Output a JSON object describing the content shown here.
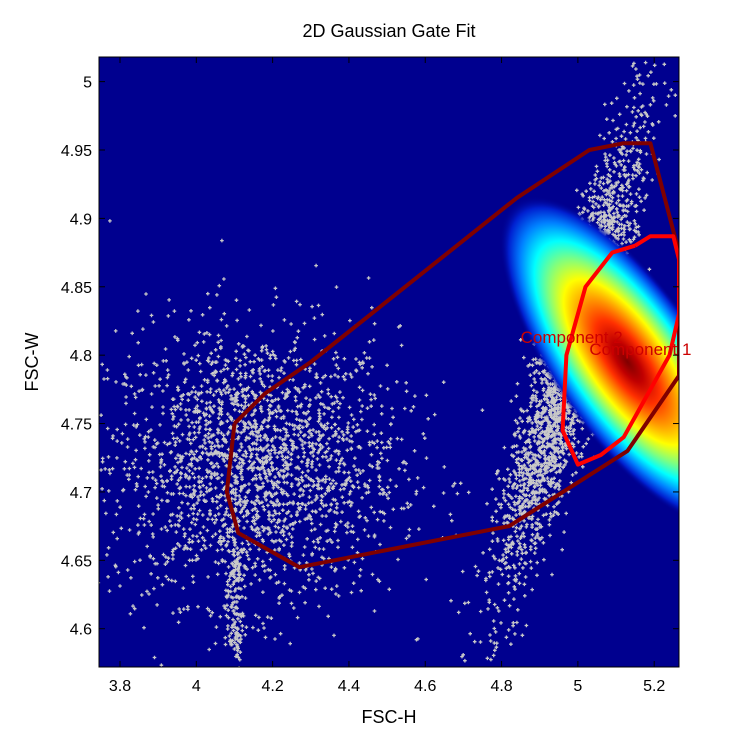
{
  "chart_data": {
    "type": "scatter",
    "title": "2D Gaussian Gate Fit",
    "xlabel": "FSC-H",
    "ylabel": "FSC-W",
    "xlim": [
      3.745,
      5.265
    ],
    "ylim": [
      4.572,
      5.018
    ],
    "xticks": [
      3.8,
      4.0,
      4.2,
      4.4,
      4.6,
      4.8,
      5.0,
      5.2
    ],
    "xtick_labels": [
      "3.8",
      "4",
      "4.2",
      "4.4",
      "4.6",
      "4.8",
      "5",
      "5.2"
    ],
    "yticks": [
      4.6,
      4.65,
      4.7,
      4.75,
      4.8,
      4.85,
      4.9,
      4.95,
      5.0
    ],
    "ytick_labels": [
      "4.6",
      "4.65",
      "4.7",
      "4.75",
      "4.8",
      "4.85",
      "4.9",
      "4.95",
      "5"
    ],
    "background_color": "#00008f",
    "point_color": "#c8c8c8",
    "clusters": [
      {
        "cx": 4.15,
        "cy": 4.72,
        "sx": 0.19,
        "sy": 0.05
      },
      {
        "cx": 4.98,
        "cy": 4.8,
        "sx": 0.11,
        "sy": 0.08
      }
    ],
    "density": {
      "cx": 5.13,
      "cy": 4.795,
      "sx": 0.075,
      "sy": 0.055,
      "rho": 0.55
    },
    "gates": [
      {
        "name": "outer-gate",
        "color": "#800000",
        "points": [
          [
            4.1,
            4.75
          ],
          [
            4.08,
            4.7
          ],
          [
            4.11,
            4.67
          ],
          [
            4.27,
            4.645
          ],
          [
            4.82,
            4.675
          ],
          [
            5.13,
            4.73
          ],
          [
            5.265,
            4.785
          ],
          [
            5.265,
            4.875
          ],
          [
            5.19,
            4.955
          ],
          [
            5.12,
            4.955
          ],
          [
            5.03,
            4.95
          ],
          [
            4.84,
            4.915
          ],
          [
            4.3,
            4.795
          ],
          [
            4.18,
            4.772
          ],
          [
            4.1,
            4.75
          ]
        ]
      },
      {
        "name": "component-1-gate",
        "color": "#ff0000",
        "points": [
          [
            5.15,
            4.88
          ],
          [
            5.19,
            4.887
          ],
          [
            5.25,
            4.887
          ],
          [
            5.265,
            4.87
          ],
          [
            5.265,
            4.83
          ],
          [
            5.24,
            4.8
          ],
          [
            5.19,
            4.775
          ],
          [
            5.12,
            4.74
          ],
          [
            5.06,
            4.727
          ],
          [
            5.0,
            4.72
          ],
          [
            4.96,
            4.745
          ],
          [
            4.97,
            4.8
          ],
          [
            5.02,
            4.85
          ],
          [
            5.09,
            4.875
          ],
          [
            5.15,
            4.88
          ]
        ]
      }
    ],
    "annotations": [
      {
        "text": "Component 2",
        "x": 4.85,
        "y": 4.809,
        "color": "#cc0000"
      },
      {
        "text": "Component 1",
        "x": 5.03,
        "y": 4.8,
        "color": "#cc0000"
      }
    ]
  }
}
